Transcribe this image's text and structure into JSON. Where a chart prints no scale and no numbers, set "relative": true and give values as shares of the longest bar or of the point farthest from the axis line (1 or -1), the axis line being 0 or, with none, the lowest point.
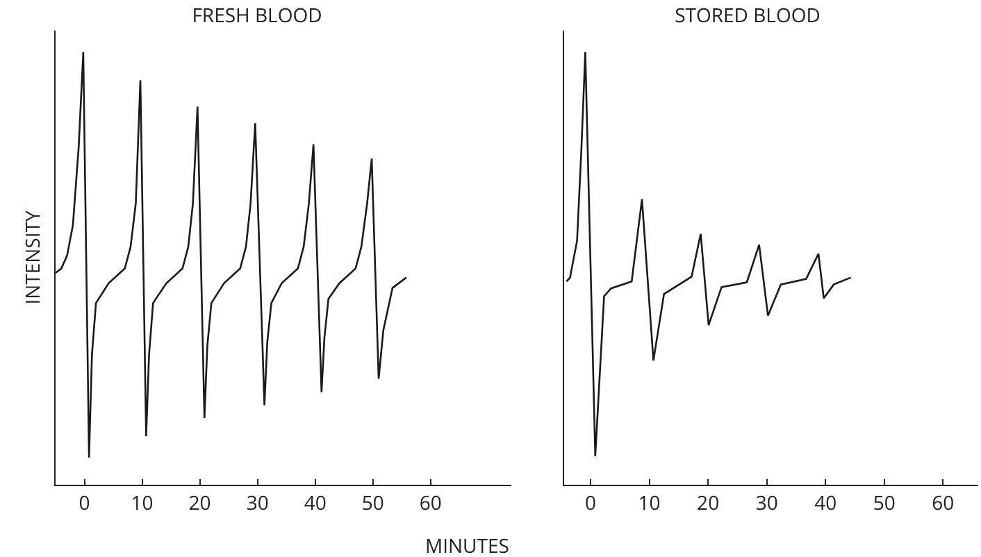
{
  "chart_data": [
    {
      "type": "line",
      "title": "FRESH BLOOD",
      "ylabel": "INTENSITY",
      "xlabel": "MINUTES",
      "relative": true,
      "xlim": [
        -5,
        74
      ],
      "xticks": [
        0,
        10,
        20,
        30,
        40,
        50,
        60
      ],
      "tick_labels": "x",
      "grid": false,
      "marker": "none",
      "line_style": "solid",
      "series": [
        {
          "color": "#1a1a1a",
          "x": [
            -5,
            -4,
            -3,
            -2,
            -1,
            -0.2,
            0.8,
            1.3,
            2,
            4.2,
            7,
            8,
            8.9,
            9.7,
            10.7,
            11.2,
            11.9,
            14.2,
            17,
            18,
            18.8,
            19.6,
            20.8,
            21.3,
            22,
            24.2,
            27,
            28,
            28.8,
            29.6,
            31.2,
            31.7,
            32.4,
            34.2,
            37,
            38,
            38.9,
            39.7,
            41.1,
            41.6,
            42.3,
            44.2,
            47,
            48,
            49,
            49.8,
            51,
            51.8,
            53.4,
            55.8
          ],
          "values": [
            0.49,
            0.5,
            0.53,
            0.6,
            0.78,
            1.0,
            0.063,
            0.3,
            0.42,
            0.466,
            0.5,
            0.55,
            0.65,
            0.935,
            0.112,
            0.3,
            0.42,
            0.466,
            0.5,
            0.55,
            0.65,
            0.874,
            0.154,
            0.32,
            0.42,
            0.466,
            0.5,
            0.55,
            0.65,
            0.836,
            0.184,
            0.33,
            0.42,
            0.466,
            0.5,
            0.55,
            0.65,
            0.787,
            0.214,
            0.34,
            0.43,
            0.466,
            0.5,
            0.55,
            0.65,
            0.754,
            0.245,
            0.356,
            0.455,
            0.479
          ]
        }
      ]
    },
    {
      "type": "line",
      "title": "STORED BLOOD",
      "relative": true,
      "xlim": [
        -4.5,
        66
      ],
      "xticks": [
        0,
        10,
        20,
        30,
        40,
        50,
        60
      ],
      "tick_labels": "x",
      "grid": false,
      "marker": "none",
      "line_style": "solid",
      "series": [
        {
          "color": "#1a1a1a",
          "x": [
            -4.1,
            -3.5,
            -2.3,
            -1.56,
            -0.9,
            0.8,
            2.3,
            3.5,
            7,
            8.75,
            10.7,
            12.5,
            17.2,
            18.75,
            20.1,
            22.3,
            26.6,
            28.7,
            30.2,
            32.4,
            36.7,
            38.8,
            39.7,
            41.4,
            44.3
          ],
          "values": [
            0.47,
            0.479,
            0.564,
            0.777,
            1.0,
            0.066,
            0.436,
            0.454,
            0.47,
            0.66,
            0.287,
            0.441,
            0.481,
            0.58,
            0.369,
            0.457,
            0.468,
            0.555,
            0.391,
            0.463,
            0.476,
            0.534,
            0.431,
            0.463,
            0.479
          ]
        }
      ]
    }
  ]
}
